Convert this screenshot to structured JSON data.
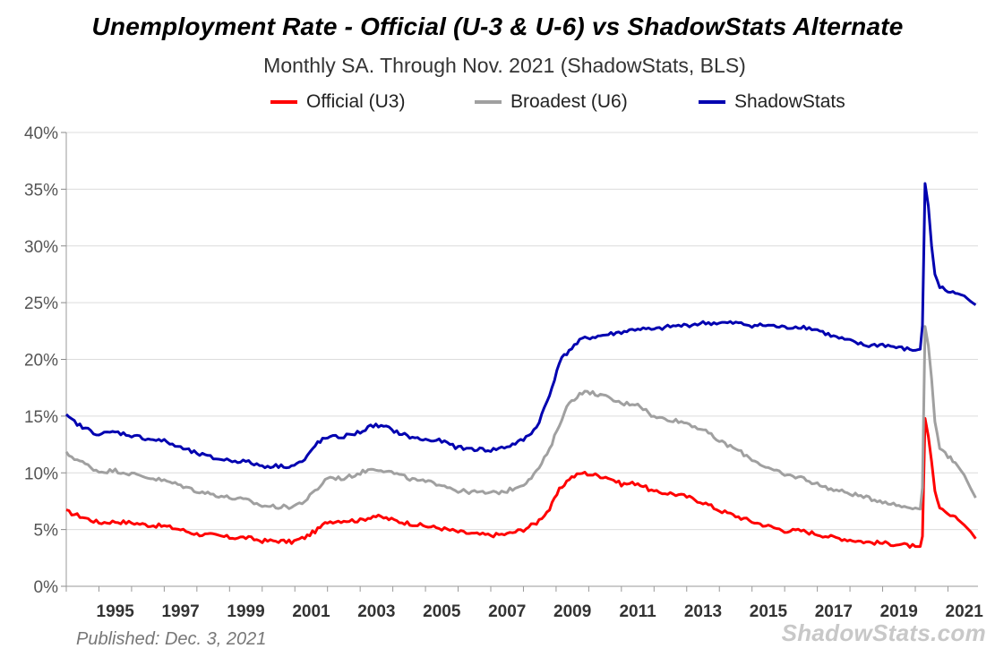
{
  "chart_data": {
    "type": "line",
    "title": "Unemployment Rate - Official (U-3 & U-6) vs ShadowStats Alternate",
    "subtitle": "Monthly SA. Through Nov. 2021  (ShadowStats, BLS)",
    "xlim": [
      1994.0,
      2021.92
    ],
    "ylim": [
      0,
      40
    ],
    "y_ticks": [
      "0%",
      "5%",
      "10%",
      "15%",
      "20%",
      "25%",
      "30%",
      "35%",
      "40%"
    ],
    "x_ticks": [
      "1995",
      "1997",
      "1999",
      "2001",
      "2003",
      "2005",
      "2007",
      "2009",
      "2011",
      "2013",
      "2015",
      "2017",
      "2019",
      "2021"
    ],
    "grid": true,
    "legend_position": "top",
    "series": [
      {
        "name": "Official (U3)",
        "color": "#ff0000",
        "points": [
          [
            1994.0,
            6.6
          ],
          [
            1994.5,
            6.1
          ],
          [
            1995.0,
            5.6
          ],
          [
            1995.5,
            5.7
          ],
          [
            1996.0,
            5.6
          ],
          [
            1996.5,
            5.4
          ],
          [
            1997.0,
            5.3
          ],
          [
            1997.5,
            5.0
          ],
          [
            1998.0,
            4.6
          ],
          [
            1998.5,
            4.5
          ],
          [
            1999.0,
            4.3
          ],
          [
            1999.5,
            4.3
          ],
          [
            2000.0,
            4.0
          ],
          [
            2000.5,
            4.0
          ],
          [
            2000.9,
            3.9
          ],
          [
            2001.3,
            4.3
          ],
          [
            2001.7,
            5.0
          ],
          [
            2002.0,
            5.7
          ],
          [
            2002.5,
            5.8
          ],
          [
            2003.0,
            5.8
          ],
          [
            2003.4,
            6.2
          ],
          [
            2003.8,
            6.0
          ],
          [
            2004.2,
            5.7
          ],
          [
            2004.6,
            5.5
          ],
          [
            2005.0,
            5.3
          ],
          [
            2005.5,
            5.1
          ],
          [
            2006.0,
            4.8
          ],
          [
            2006.5,
            4.6
          ],
          [
            2007.0,
            4.5
          ],
          [
            2007.5,
            4.6
          ],
          [
            2008.0,
            5.0
          ],
          [
            2008.4,
            5.6
          ],
          [
            2008.8,
            6.8
          ],
          [
            2009.1,
            8.5
          ],
          [
            2009.4,
            9.5
          ],
          [
            2009.8,
            10.0
          ],
          [
            2010.2,
            9.8
          ],
          [
            2010.6,
            9.6
          ],
          [
            2011.0,
            9.0
          ],
          [
            2011.5,
            9.1
          ],
          [
            2012.0,
            8.3
          ],
          [
            2012.5,
            8.2
          ],
          [
            2013.0,
            7.9
          ],
          [
            2013.5,
            7.4
          ],
          [
            2014.0,
            6.7
          ],
          [
            2014.5,
            6.2
          ],
          [
            2015.0,
            5.7
          ],
          [
            2015.5,
            5.3
          ],
          [
            2016.0,
            4.9
          ],
          [
            2016.5,
            4.9
          ],
          [
            2017.0,
            4.6
          ],
          [
            2017.5,
            4.3
          ],
          [
            2018.0,
            4.1
          ],
          [
            2018.5,
            3.9
          ],
          [
            2019.0,
            3.8
          ],
          [
            2019.5,
            3.7
          ],
          [
            2020.0,
            3.5
          ],
          [
            2020.15,
            3.5
          ],
          [
            2020.22,
            4.4
          ],
          [
            2020.3,
            14.8
          ],
          [
            2020.4,
            13.2
          ],
          [
            2020.5,
            11.0
          ],
          [
            2020.6,
            8.4
          ],
          [
            2020.75,
            6.8
          ],
          [
            2021.0,
            6.3
          ],
          [
            2021.3,
            5.9
          ],
          [
            2021.5,
            5.4
          ],
          [
            2021.7,
            4.8
          ],
          [
            2021.85,
            4.2
          ]
        ]
      },
      {
        "name": "Broadest (U6)",
        "color": "#a0a0a0",
        "points": [
          [
            1994.0,
            11.7
          ],
          [
            1994.5,
            10.9
          ],
          [
            1995.0,
            10.1
          ],
          [
            1995.5,
            10.2
          ],
          [
            1996.0,
            9.9
          ],
          [
            1996.5,
            9.6
          ],
          [
            1997.0,
            9.3
          ],
          [
            1997.5,
            8.9
          ],
          [
            1998.0,
            8.4
          ],
          [
            1998.5,
            8.1
          ],
          [
            1999.0,
            7.8
          ],
          [
            1999.5,
            7.6
          ],
          [
            2000.0,
            7.1
          ],
          [
            2000.5,
            7.0
          ],
          [
            2000.9,
            7.0
          ],
          [
            2001.3,
            7.5
          ],
          [
            2001.7,
            8.6
          ],
          [
            2002.0,
            9.6
          ],
          [
            2002.5,
            9.5
          ],
          [
            2003.0,
            10.0
          ],
          [
            2003.4,
            10.4
          ],
          [
            2003.8,
            10.2
          ],
          [
            2004.2,
            9.8
          ],
          [
            2004.6,
            9.4
          ],
          [
            2005.0,
            9.2
          ],
          [
            2005.5,
            9.0
          ],
          [
            2006.0,
            8.4
          ],
          [
            2006.5,
            8.3
          ],
          [
            2007.0,
            8.2
          ],
          [
            2007.5,
            8.4
          ],
          [
            2008.0,
            9.0
          ],
          [
            2008.4,
            10.1
          ],
          [
            2008.8,
            12.0
          ],
          [
            2009.1,
            14.3
          ],
          [
            2009.4,
            16.2
          ],
          [
            2009.8,
            17.1
          ],
          [
            2010.2,
            17.0
          ],
          [
            2010.6,
            16.6
          ],
          [
            2011.0,
            16.1
          ],
          [
            2011.5,
            16.1
          ],
          [
            2012.0,
            14.9
          ],
          [
            2012.5,
            14.7
          ],
          [
            2013.0,
            14.4
          ],
          [
            2013.5,
            13.8
          ],
          [
            2014.0,
            12.8
          ],
          [
            2014.5,
            12.1
          ],
          [
            2015.0,
            11.2
          ],
          [
            2015.5,
            10.4
          ],
          [
            2016.0,
            9.8
          ],
          [
            2016.5,
            9.6
          ],
          [
            2017.0,
            9.0
          ],
          [
            2017.5,
            8.5
          ],
          [
            2018.0,
            8.2
          ],
          [
            2018.5,
            7.8
          ],
          [
            2019.0,
            7.5
          ],
          [
            2019.5,
            7.1
          ],
          [
            2020.0,
            6.9
          ],
          [
            2020.15,
            6.8
          ],
          [
            2020.22,
            8.7
          ],
          [
            2020.3,
            22.9
          ],
          [
            2020.4,
            21.2
          ],
          [
            2020.5,
            18.3
          ],
          [
            2020.6,
            14.5
          ],
          [
            2020.75,
            12.3
          ],
          [
            2021.0,
            11.5
          ],
          [
            2021.3,
            10.6
          ],
          [
            2021.5,
            9.8
          ],
          [
            2021.7,
            8.6
          ],
          [
            2021.85,
            7.8
          ]
        ]
      },
      {
        "name": "ShadowStats",
        "color": "#0000b0",
        "points": [
          [
            1994.0,
            15.0
          ],
          [
            1994.5,
            14.0
          ],
          [
            1995.0,
            13.4
          ],
          [
            1995.5,
            13.6
          ],
          [
            1996.0,
            13.3
          ],
          [
            1996.5,
            13.0
          ],
          [
            1997.0,
            12.8
          ],
          [
            1997.5,
            12.2
          ],
          [
            1998.0,
            11.7
          ],
          [
            1998.5,
            11.3
          ],
          [
            1999.0,
            11.1
          ],
          [
            1999.5,
            11.0
          ],
          [
            2000.0,
            10.6
          ],
          [
            2000.5,
            10.6
          ],
          [
            2000.9,
            10.6
          ],
          [
            2001.3,
            11.1
          ],
          [
            2001.7,
            12.7
          ],
          [
            2002.0,
            13.1
          ],
          [
            2002.5,
            13.2
          ],
          [
            2003.0,
            13.6
          ],
          [
            2003.4,
            14.2
          ],
          [
            2003.8,
            14.0
          ],
          [
            2004.2,
            13.5
          ],
          [
            2004.6,
            13.1
          ],
          [
            2005.0,
            12.9
          ],
          [
            2005.5,
            12.8
          ],
          [
            2006.0,
            12.2
          ],
          [
            2006.5,
            12.1
          ],
          [
            2007.0,
            12.0
          ],
          [
            2007.5,
            12.3
          ],
          [
            2008.0,
            12.9
          ],
          [
            2008.4,
            14.0
          ],
          [
            2008.8,
            16.8
          ],
          [
            2009.1,
            19.8
          ],
          [
            2009.4,
            20.8
          ],
          [
            2009.8,
            21.8
          ],
          [
            2010.2,
            22.0
          ],
          [
            2010.6,
            22.2
          ],
          [
            2011.0,
            22.4
          ],
          [
            2011.5,
            22.7
          ],
          [
            2012.0,
            22.6
          ],
          [
            2012.5,
            22.9
          ],
          [
            2013.0,
            23.0
          ],
          [
            2013.5,
            23.2
          ],
          [
            2014.0,
            23.2
          ],
          [
            2014.5,
            23.2
          ],
          [
            2015.0,
            23.0
          ],
          [
            2015.5,
            23.0
          ],
          [
            2016.0,
            22.8
          ],
          [
            2016.5,
            22.9
          ],
          [
            2017.0,
            22.6
          ],
          [
            2017.5,
            22.0
          ],
          [
            2018.0,
            21.6
          ],
          [
            2018.5,
            21.2
          ],
          [
            2019.0,
            21.3
          ],
          [
            2019.5,
            21.0
          ],
          [
            2020.0,
            20.8
          ],
          [
            2020.15,
            20.9
          ],
          [
            2020.22,
            23.0
          ],
          [
            2020.3,
            35.5
          ],
          [
            2020.4,
            33.5
          ],
          [
            2020.5,
            30.0
          ],
          [
            2020.6,
            27.5
          ],
          [
            2020.75,
            26.4
          ],
          [
            2021.0,
            26.0
          ],
          [
            2021.3,
            25.8
          ],
          [
            2021.5,
            25.6
          ],
          [
            2021.7,
            25.1
          ],
          [
            2021.85,
            24.8
          ]
        ]
      }
    ]
  },
  "footer": {
    "published": "Published: Dec. 3, 2021",
    "brand": "ShadowStats.com"
  }
}
